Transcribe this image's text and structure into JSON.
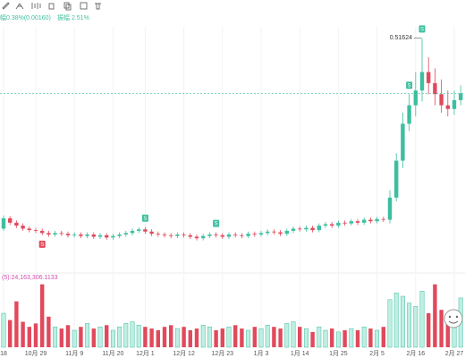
{
  "header": {
    "change": "幅0.38%(0.00160)",
    "amplitude": "振幅 2.51%"
  },
  "chart_data": {
    "type": "candlestick",
    "categories": [
      "18",
      null,
      null,
      null,
      null,
      "10月 29",
      null,
      null,
      null,
      null,
      null,
      "11月 9",
      null,
      null,
      null,
      null,
      null,
      "11月 20",
      null,
      null,
      null,
      null,
      "12月 1",
      null,
      null,
      null,
      null,
      null,
      "12月 12",
      null,
      null,
      null,
      null,
      null,
      "12月 23",
      null,
      null,
      null,
      null,
      null,
      "1月 3",
      null,
      null,
      null,
      null,
      null,
      "1月 14",
      null,
      null,
      null,
      null,
      null,
      "1月 25",
      null,
      null,
      null,
      null,
      null,
      "2月 5",
      null,
      null,
      null,
      null,
      null,
      "2月 16",
      null,
      null,
      null,
      null,
      null,
      "2月 27",
      null
    ],
    "open": [
      0.258,
      0.272,
      0.266,
      0.262,
      0.258,
      0.256,
      0.255,
      0.252,
      0.25,
      0.252,
      0.251,
      0.249,
      0.25,
      0.248,
      0.25,
      0.247,
      0.249,
      0.246,
      0.248,
      0.25,
      0.252,
      0.255,
      0.257,
      0.254,
      0.251,
      0.25,
      0.249,
      0.248,
      0.25,
      0.249,
      0.247,
      0.245,
      0.248,
      0.25,
      0.249,
      0.247,
      0.25,
      0.249,
      0.248,
      0.251,
      0.25,
      0.252,
      0.254,
      0.253,
      0.251,
      0.255,
      0.258,
      0.257,
      0.259,
      0.256,
      0.262,
      0.264,
      0.262,
      0.266,
      0.265,
      0.268,
      0.266,
      0.27,
      0.268,
      0.271,
      0.27,
      0.3,
      0.35,
      0.4,
      0.425,
      0.445,
      0.47,
      0.455,
      0.44,
      0.425,
      0.42,
      0.432
    ],
    "high": [
      0.276,
      0.275,
      0.269,
      0.265,
      0.261,
      0.259,
      0.258,
      0.255,
      0.255,
      0.255,
      0.254,
      0.253,
      0.253,
      0.253,
      0.253,
      0.252,
      0.252,
      0.251,
      0.253,
      0.255,
      0.258,
      0.26,
      0.26,
      0.257,
      0.254,
      0.253,
      0.252,
      0.253,
      0.253,
      0.252,
      0.25,
      0.251,
      0.253,
      0.253,
      0.252,
      0.253,
      0.253,
      0.252,
      0.254,
      0.254,
      0.255,
      0.257,
      0.257,
      0.256,
      0.258,
      0.261,
      0.261,
      0.262,
      0.262,
      0.265,
      0.267,
      0.267,
      0.269,
      0.269,
      0.271,
      0.271,
      0.273,
      0.273,
      0.274,
      0.274,
      0.31,
      0.36,
      0.415,
      0.44,
      0.47,
      0.51624,
      0.49,
      0.475,
      0.46,
      0.445,
      0.445,
      0.452
    ],
    "low": [
      0.255,
      0.263,
      0.259,
      0.255,
      0.253,
      0.252,
      0.249,
      0.247,
      0.247,
      0.248,
      0.246,
      0.246,
      0.245,
      0.245,
      0.244,
      0.244,
      0.243,
      0.243,
      0.245,
      0.247,
      0.249,
      0.252,
      0.251,
      0.248,
      0.247,
      0.246,
      0.245,
      0.245,
      0.246,
      0.244,
      0.242,
      0.242,
      0.245,
      0.246,
      0.244,
      0.244,
      0.246,
      0.245,
      0.245,
      0.247,
      0.247,
      0.249,
      0.25,
      0.248,
      0.248,
      0.252,
      0.254,
      0.254,
      0.253,
      0.253,
      0.259,
      0.259,
      0.259,
      0.262,
      0.262,
      0.263,
      0.263,
      0.265,
      0.265,
      0.267,
      0.265,
      0.295,
      0.34,
      0.39,
      0.41,
      0.43,
      0.44,
      0.425,
      0.415,
      0.41,
      0.412,
      0.425
    ],
    "close": [
      0.272,
      0.266,
      0.262,
      0.258,
      0.256,
      0.255,
      0.252,
      0.25,
      0.252,
      0.251,
      0.249,
      0.25,
      0.248,
      0.25,
      0.247,
      0.249,
      0.246,
      0.248,
      0.25,
      0.252,
      0.255,
      0.257,
      0.254,
      0.251,
      0.25,
      0.249,
      0.248,
      0.25,
      0.249,
      0.247,
      0.245,
      0.248,
      0.25,
      0.249,
      0.247,
      0.25,
      0.249,
      0.248,
      0.251,
      0.25,
      0.252,
      0.254,
      0.253,
      0.251,
      0.255,
      0.258,
      0.257,
      0.259,
      0.256,
      0.262,
      0.264,
      0.262,
      0.266,
      0.265,
      0.268,
      0.266,
      0.27,
      0.268,
      0.271,
      0.27,
      0.3,
      0.35,
      0.4,
      0.425,
      0.445,
      0.47,
      0.455,
      0.44,
      0.425,
      0.42,
      0.432,
      0.441
    ],
    "volume": [
      20000000,
      16000000,
      27000000,
      15000000,
      12000000,
      14000000,
      37000000,
      18000000,
      12000000,
      11000000,
      13000000,
      10000000,
      12000000,
      14000000,
      11000000,
      12000000,
      13000000,
      10000000,
      12000000,
      14000000,
      15000000,
      13000000,
      12000000,
      11000000,
      10000000,
      12000000,
      13000000,
      11000000,
      12000000,
      10000000,
      11000000,
      13000000,
      12000000,
      10000000,
      11000000,
      12000000,
      13000000,
      11000000,
      10000000,
      12000000,
      11000000,
      13000000,
      12000000,
      11000000,
      14000000,
      15000000,
      12000000,
      11000000,
      9000000,
      12000000,
      10000000,
      11000000,
      9000000,
      10000000,
      11000000,
      10000000,
      12000000,
      11000000,
      10000000,
      12000000,
      28000000,
      32000000,
      30000000,
      26000000,
      24000000,
      33000000,
      20000000,
      37000000,
      22000000,
      18000000,
      16000000,
      29000000
    ],
    "volume_label": "(5):24,163,306.1133",
    "ylim": [
      0.204,
      0.5312
    ],
    "vol_ylim": [
      0,
      40000000
    ],
    "up_color": "#3dbf9f",
    "down_color": "#e04a5c",
    "signals": [
      {
        "index": 6,
        "label": "S",
        "side": "sell"
      },
      {
        "index": 22,
        "label": "S",
        "side": "buy"
      },
      {
        "index": 33,
        "label": "S",
        "side": "buy"
      },
      {
        "index": 63,
        "label": "S",
        "side": "buy"
      },
      {
        "index": 65,
        "label": "S",
        "side": "buy"
      }
    ]
  }
}
